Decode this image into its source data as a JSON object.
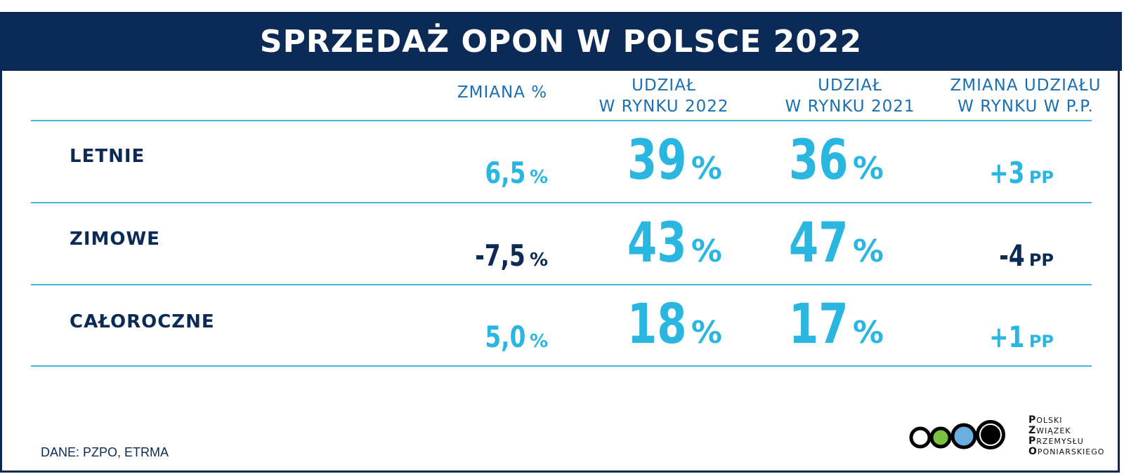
{
  "title": "SPRZEDAŻ OPON W POLSCE 2022",
  "columns": {
    "change": [
      "ZMIANA %"
    ],
    "share2022": [
      "UDZIAŁ",
      "W RYNKU 2022"
    ],
    "share2021": [
      "UDZIAŁ",
      "W RYNKU 2021"
    ],
    "share_change": [
      "ZMIANA UDZIAŁU",
      "W RYNKU W P.P."
    ]
  },
  "rows": [
    {
      "label": "LETNIE",
      "change": "6,5",
      "change_unit": "%",
      "share2022": "39",
      "share2021": "36",
      "pp": "+3",
      "pp_unit": "PP",
      "change_color": "cyan",
      "pp_color": "cyan"
    },
    {
      "label": "ZIMOWE",
      "change": "-7,5",
      "change_unit": "%",
      "share2022": "43",
      "share2021": "47",
      "pp": "-4",
      "pp_unit": "PP",
      "change_color": "navy",
      "pp_color": "navy"
    },
    {
      "label": "CAŁOROCZNE",
      "change": "5,0",
      "change_unit": "%",
      "share2022": "18",
      "share2021": "17",
      "pp": "+1",
      "pp_unit": "PP",
      "change_color": "cyan",
      "pp_color": "cyan"
    }
  ],
  "percent_sign": "%",
  "source": "DANE: PZPO, ETRMA",
  "logo": {
    "lines": [
      {
        "initial": "P",
        "rest": "OLSKI"
      },
      {
        "initial": "Z",
        "rest": "WIĄZEK"
      },
      {
        "initial": "P",
        "rest": "RZEMYSŁU"
      },
      {
        "initial": "O",
        "rest": "PONIARSKIEGO"
      }
    ],
    "circle_colors": [
      "#ffffff",
      "#7cc242",
      "#6aaee0",
      "#000000"
    ]
  },
  "colors": {
    "navy": "#0b2a55",
    "cyan": "#29b6e0",
    "header_blue": "#1a6fb0"
  }
}
